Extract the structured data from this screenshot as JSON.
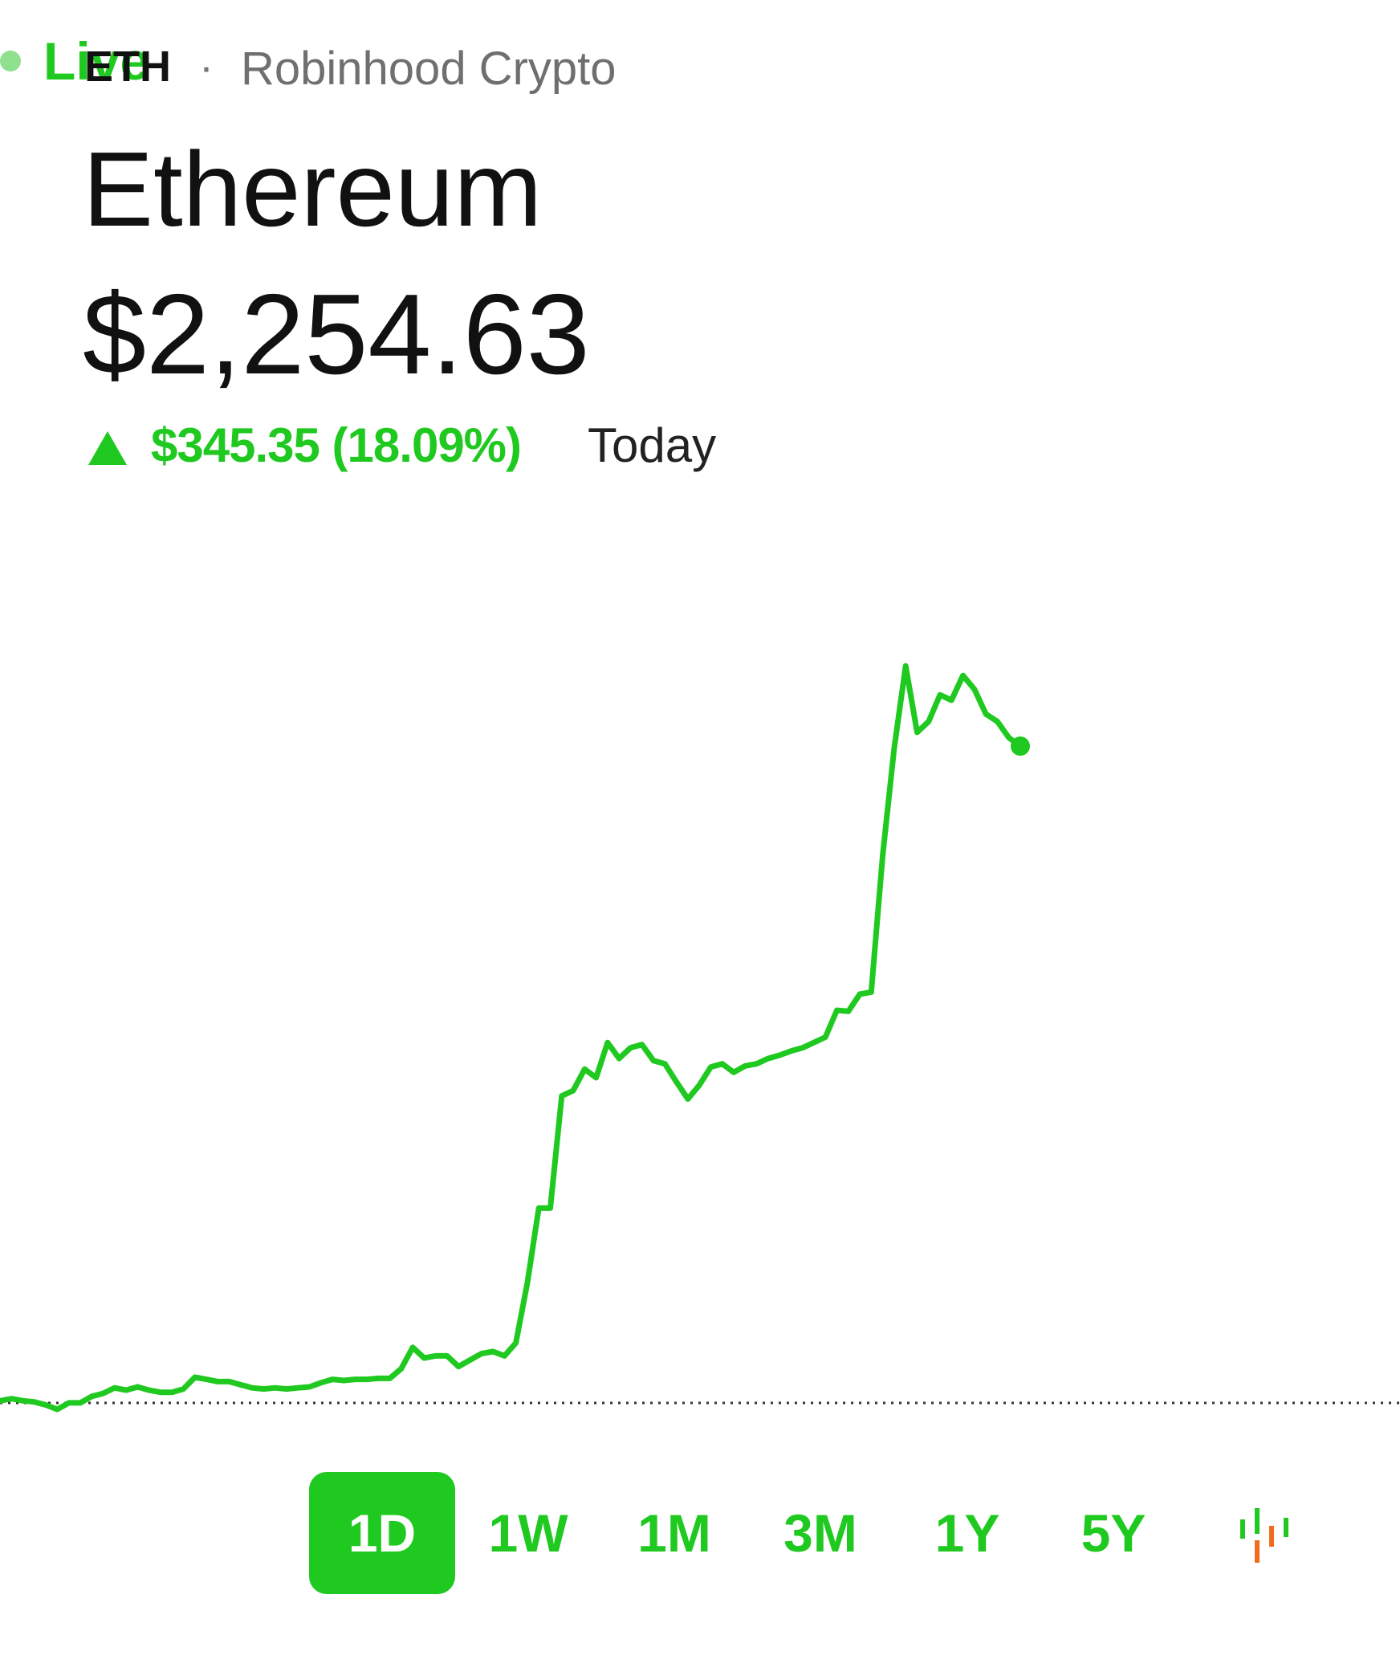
{
  "header": {
    "ticker": "ETH",
    "separator": "·",
    "source": "Robinhood Crypto"
  },
  "name": "Ethereum",
  "price": "$2,254.63",
  "change": {
    "amount": "$345.35 (18.09%)",
    "period": "Today"
  },
  "chart_data": {
    "type": "line",
    "color": "#1fc91f",
    "ylim": [
      1870,
      2310
    ],
    "reference_line": 1909.28,
    "values": [
      1910.4,
      1911.5,
      1910.4,
      1909.8,
      1908.2,
      1905.9,
      1909.3,
      1909.3,
      1912.7,
      1914.3,
      1917.2,
      1916.0,
      1917.7,
      1916.0,
      1914.9,
      1914.9,
      1916.6,
      1922.8,
      1921.7,
      1920.5,
      1920.5,
      1918.8,
      1917.2,
      1916.6,
      1917.2,
      1916.6,
      1917.2,
      1917.7,
      1919.9,
      1921.7,
      1921.1,
      1921.7,
      1921.7,
      1922.2,
      1922.2,
      1927.3,
      1938.5,
      1932.9,
      1934.0,
      1934.0,
      1928.4,
      1931.8,
      1935.2,
      1936.3,
      1934.0,
      1940.8,
      1972.3,
      2011.7,
      2011.7,
      2070.7,
      2073.5,
      2084.8,
      2080.3,
      2098.8,
      2090.4,
      2096.0,
      2097.7,
      2089.3,
      2087.6,
      2078.1,
      2069.1,
      2076.3,
      2085.9,
      2087.6,
      2083.1,
      2086.5,
      2087.6,
      2090.4,
      2092.1,
      2094.3,
      2096.0,
      2098.8,
      2101.6,
      2115.7,
      2115.2,
      2124.2,
      2125.3,
      2197.3,
      2253.5,
      2296.8,
      2261.9,
      2267.6,
      2281.6,
      2278.8,
      2291.8,
      2284.5,
      2271.5,
      2267.6,
      2259.1,
      2254.63
    ]
  },
  "ranges": {
    "live": "Live",
    "items": [
      "1D",
      "1W",
      "1M",
      "3M",
      "1Y",
      "5Y"
    ],
    "selected": 0
  }
}
